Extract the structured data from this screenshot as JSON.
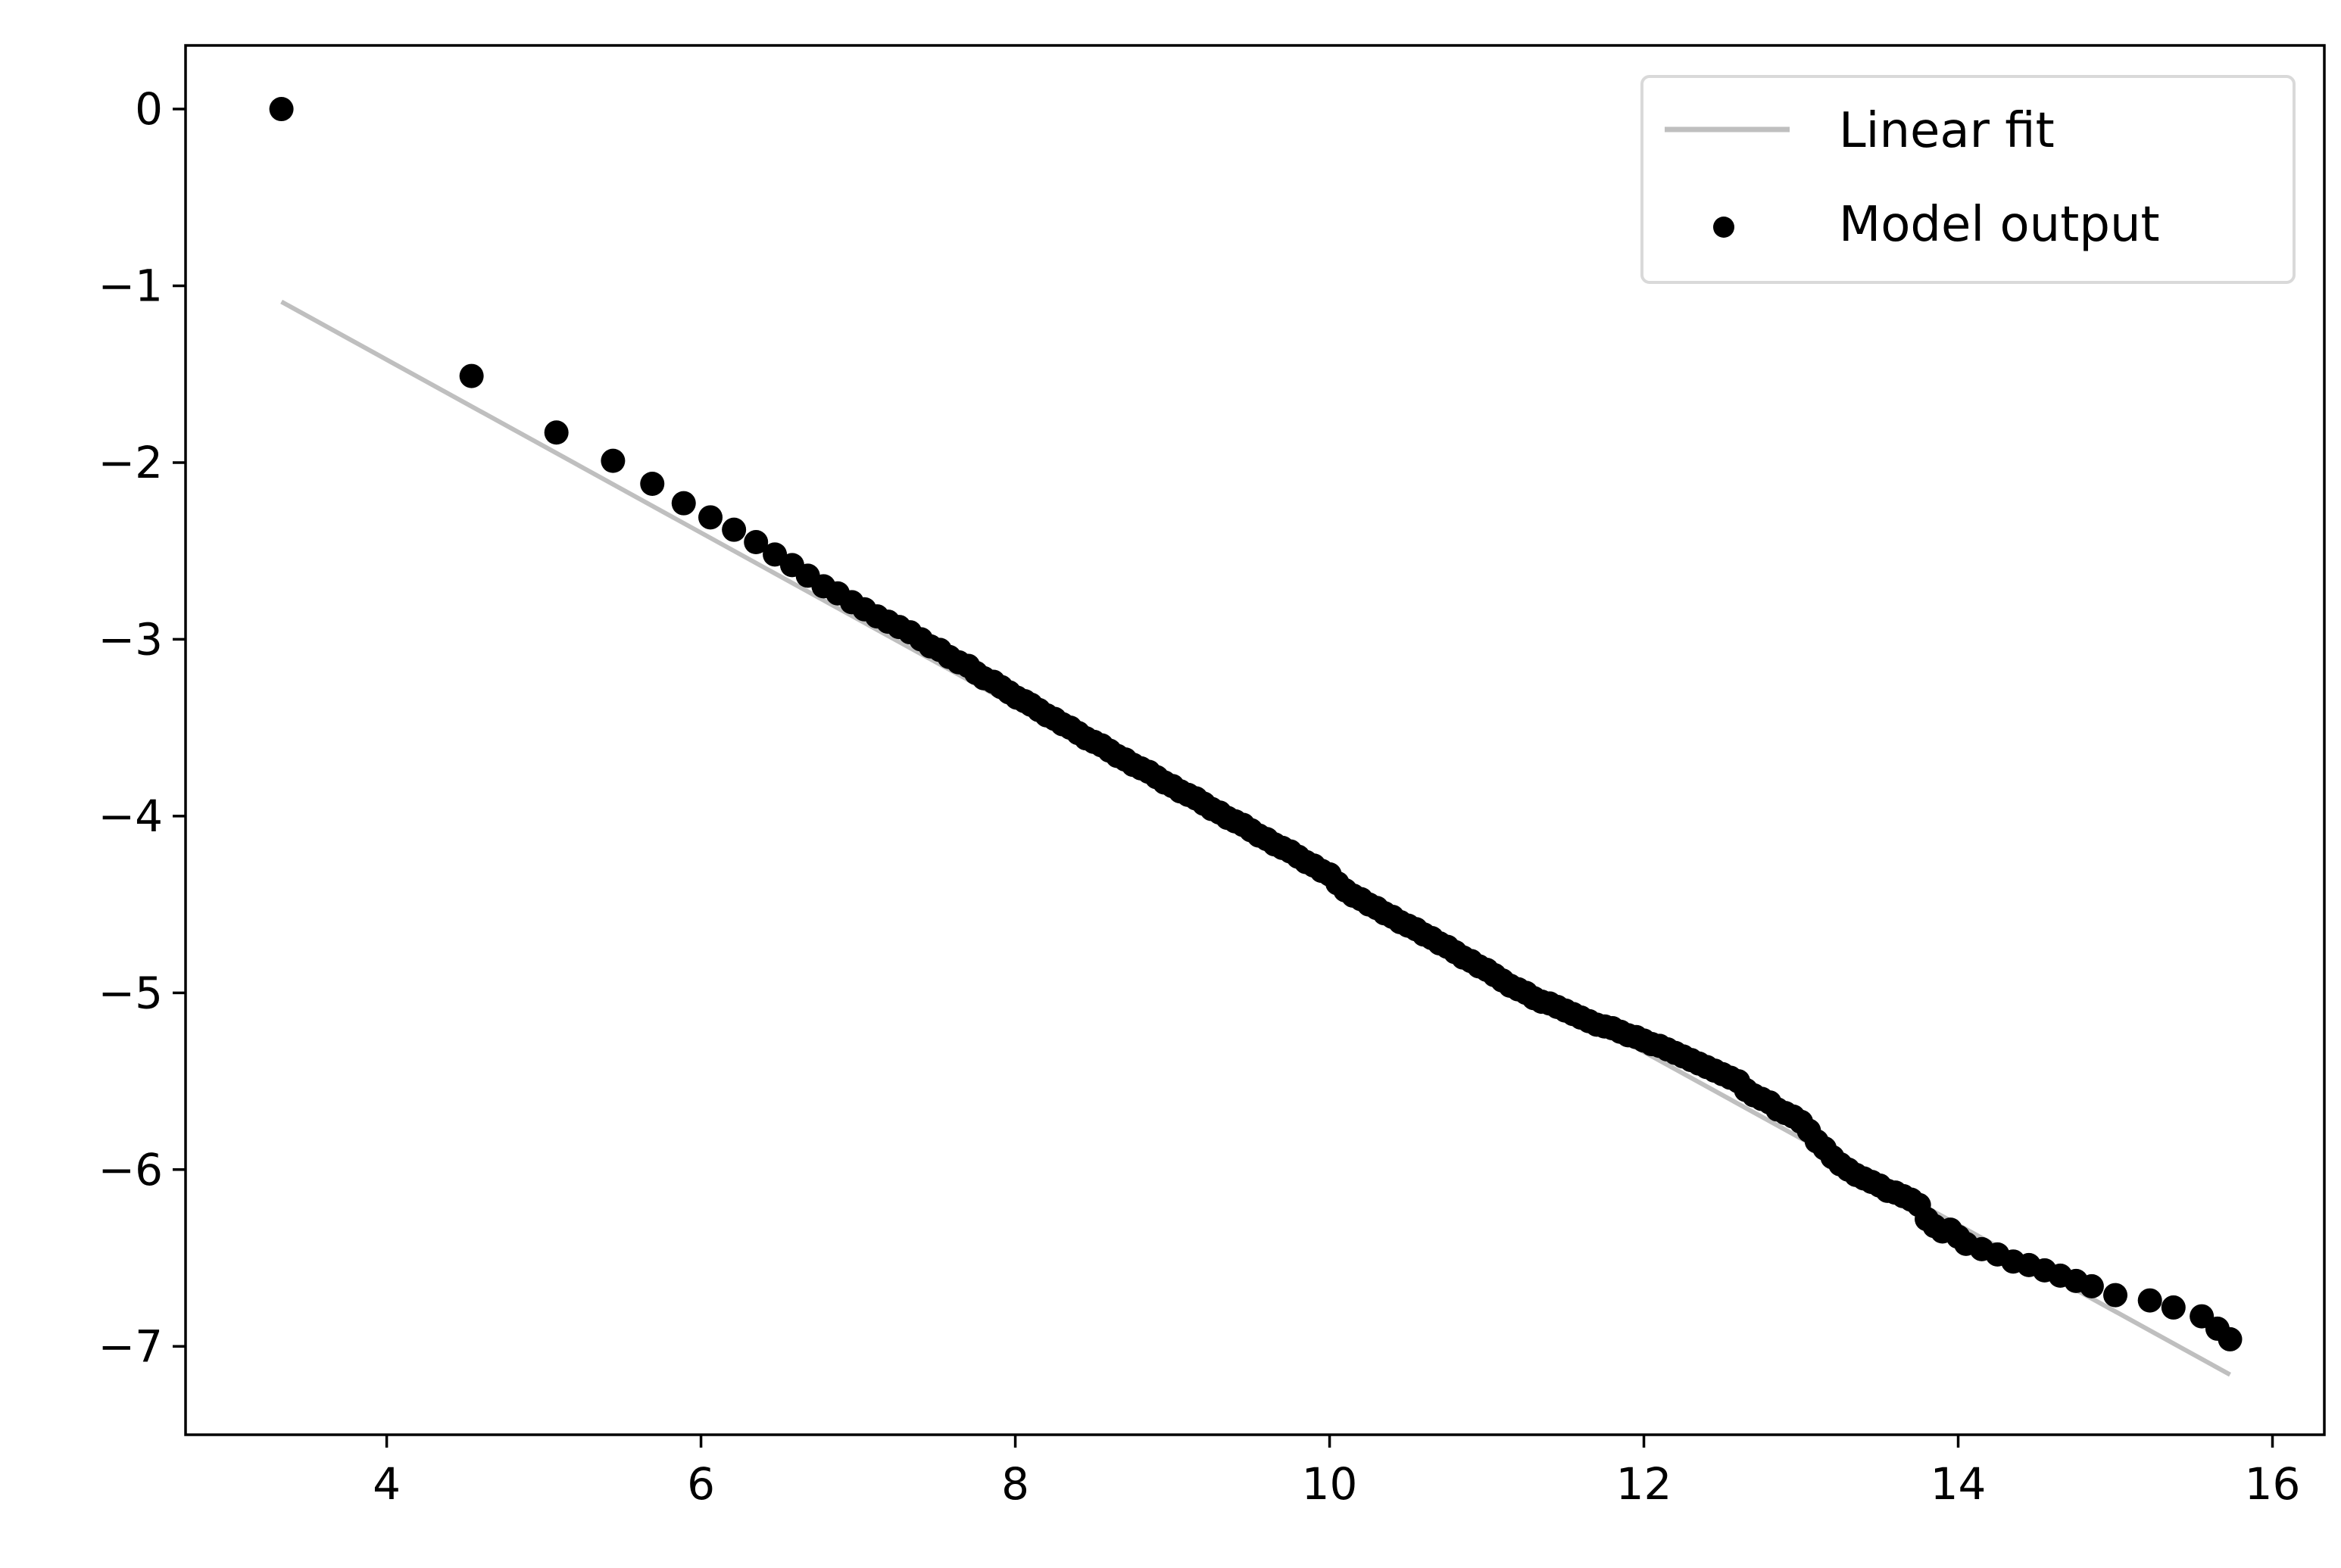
{
  "chart_data": {
    "type": "scatter",
    "title": "",
    "xlabel": "",
    "ylabel": "",
    "xlim": [
      2.72,
      16.33
    ],
    "ylim": [
      -7.5,
      0.36
    ],
    "xticks": [
      4,
      6,
      8,
      10,
      12,
      14,
      16
    ],
    "yticks": [
      0,
      -1,
      -2,
      -3,
      -4,
      -5,
      -6,
      -7
    ],
    "grid": false,
    "legend_position": "top-right",
    "colors": {
      "fit_line": "#bfbfbf",
      "points": "#000000",
      "axes": "#000000",
      "legend_border": "#d9d9d9"
    },
    "series": [
      {
        "name": "Linear fit",
        "kind": "line",
        "x": [
          3.33,
          15.73
        ],
        "y": [
          -1.09,
          -7.16
        ]
      },
      {
        "name": "Model output",
        "kind": "scatter",
        "x": [
          3.33,
          4.54,
          5.08,
          5.44,
          5.69,
          5.89,
          6.06,
          6.21,
          6.35,
          6.47,
          6.58,
          6.68,
          6.78,
          6.87,
          6.96,
          7.04,
          7.12,
          7.19,
          7.26,
          7.33,
          7.4,
          7.46,
          7.52,
          7.58,
          7.64,
          7.7,
          7.75,
          7.8,
          7.86,
          7.91,
          7.96,
          8.01,
          8.06,
          8.1,
          8.15,
          8.2,
          8.25,
          8.3,
          8.35,
          8.4,
          8.45,
          8.5,
          8.55,
          8.6,
          8.65,
          8.7,
          8.75,
          8.8,
          8.85,
          8.9,
          8.95,
          9.0,
          9.05,
          9.1,
          9.15,
          9.2,
          9.25,
          9.3,
          9.35,
          9.4,
          9.45,
          9.5,
          9.55,
          9.6,
          9.65,
          9.7,
          9.75,
          9.8,
          9.85,
          9.9,
          9.95,
          10.0,
          10.05,
          10.1,
          10.15,
          10.2,
          10.25,
          10.3,
          10.35,
          10.4,
          10.45,
          10.5,
          10.55,
          10.6,
          10.65,
          10.7,
          10.75,
          10.8,
          10.85,
          10.9,
          10.95,
          11.0,
          11.05,
          11.1,
          11.15,
          11.2,
          11.25,
          11.3,
          11.35,
          11.4,
          11.45,
          11.5,
          11.55,
          11.6,
          11.65,
          11.7,
          11.75,
          11.8,
          11.85,
          11.9,
          11.95,
          12.0,
          12.05,
          12.1,
          12.15,
          12.2,
          12.25,
          12.3,
          12.35,
          12.4,
          12.45,
          12.5,
          12.55,
          12.6,
          12.65,
          12.7,
          12.75,
          12.8,
          12.85,
          12.9,
          12.95,
          13.0,
          13.05,
          13.1,
          13.15,
          13.2,
          13.25,
          13.3,
          13.35,
          13.4,
          13.45,
          13.5,
          13.55,
          13.6,
          13.65,
          13.7,
          13.75,
          13.8,
          13.85,
          13.9,
          13.95,
          14.0,
          14.05,
          14.15,
          14.25,
          14.35,
          14.45,
          14.55,
          14.65,
          14.75,
          14.85,
          15.0,
          15.22,
          15.37,
          15.55,
          15.65,
          15.73
        ],
        "y": [
          0.0,
          -1.51,
          -1.83,
          -1.99,
          -2.12,
          -2.23,
          -2.31,
          -2.38,
          -2.45,
          -2.52,
          -2.58,
          -2.64,
          -2.7,
          -2.74,
          -2.79,
          -2.83,
          -2.87,
          -2.9,
          -2.93,
          -2.96,
          -3.0,
          -3.04,
          -3.06,
          -3.1,
          -3.13,
          -3.15,
          -3.19,
          -3.22,
          -3.24,
          -3.27,
          -3.3,
          -3.33,
          -3.35,
          -3.37,
          -3.4,
          -3.43,
          -3.45,
          -3.48,
          -3.5,
          -3.53,
          -3.56,
          -3.58,
          -3.6,
          -3.63,
          -3.66,
          -3.68,
          -3.71,
          -3.73,
          -3.75,
          -3.78,
          -3.81,
          -3.83,
          -3.86,
          -3.88,
          -3.9,
          -3.93,
          -3.96,
          -3.98,
          -4.01,
          -4.03,
          -4.05,
          -4.08,
          -4.11,
          -4.13,
          -4.16,
          -4.18,
          -4.2,
          -4.23,
          -4.26,
          -4.28,
          -4.31,
          -4.33,
          -4.38,
          -4.42,
          -4.45,
          -4.47,
          -4.5,
          -4.52,
          -4.55,
          -4.57,
          -4.6,
          -4.62,
          -4.64,
          -4.67,
          -4.69,
          -4.72,
          -4.74,
          -4.77,
          -4.8,
          -4.82,
          -4.85,
          -4.87,
          -4.9,
          -4.93,
          -4.96,
          -4.98,
          -5.0,
          -5.03,
          -5.05,
          -5.06,
          -5.08,
          -5.1,
          -5.12,
          -5.14,
          -5.16,
          -5.18,
          -5.19,
          -5.2,
          -5.22,
          -5.24,
          -5.25,
          -5.27,
          -5.29,
          -5.3,
          -5.32,
          -5.34,
          -5.36,
          -5.38,
          -5.4,
          -5.42,
          -5.44,
          -5.46,
          -5.48,
          -5.5,
          -5.55,
          -5.58,
          -5.6,
          -5.62,
          -5.66,
          -5.68,
          -5.7,
          -5.73,
          -5.78,
          -5.84,
          -5.88,
          -5.93,
          -5.97,
          -6.0,
          -6.03,
          -6.05,
          -6.07,
          -6.09,
          -6.12,
          -6.13,
          -6.15,
          -6.17,
          -6.2,
          -6.28,
          -6.32,
          -6.35,
          -6.34,
          -6.38,
          -6.42,
          -6.45,
          -6.48,
          -6.52,
          -6.54,
          -6.57,
          -6.6,
          -6.63,
          -6.66,
          -6.71,
          -6.74,
          -6.78,
          -6.83,
          -6.9,
          -6.96
        ]
      }
    ]
  }
}
